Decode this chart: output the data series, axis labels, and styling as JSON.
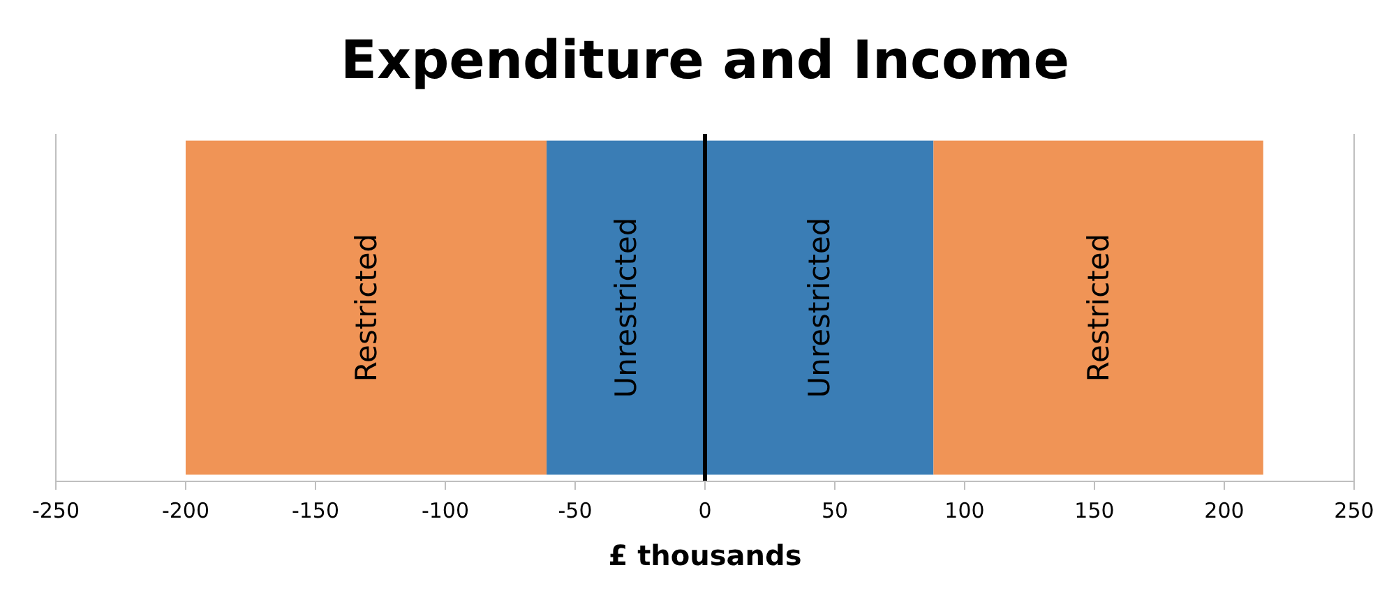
{
  "chart_data": {
    "type": "bar",
    "title": "Expenditure and Income",
    "xlabel": "£ thousands",
    "orientation": "horizontal",
    "stacked": true,
    "categories": [
      null
    ],
    "series": [
      {
        "name": "Unrestricted",
        "color": "#3a7db5",
        "values": [
          -61
        ]
      },
      {
        "name": "Unrestricted",
        "color": "#3a7db5",
        "values": [
          88
        ]
      },
      {
        "name": "Restricted",
        "color": "#f09456",
        "values": [
          -139
        ]
      },
      {
        "name": "Restricted",
        "color": "#f09456",
        "values": [
          127
        ]
      }
    ],
    "xlim": [
      -250,
      250
    ],
    "xticks": [
      -250,
      -200,
      -150,
      -100,
      -50,
      0,
      50,
      100,
      150,
      200,
      250
    ],
    "grid": false,
    "ref_lines": [
      {
        "axis": "x",
        "value": 0,
        "color": "#000000"
      }
    ]
  }
}
